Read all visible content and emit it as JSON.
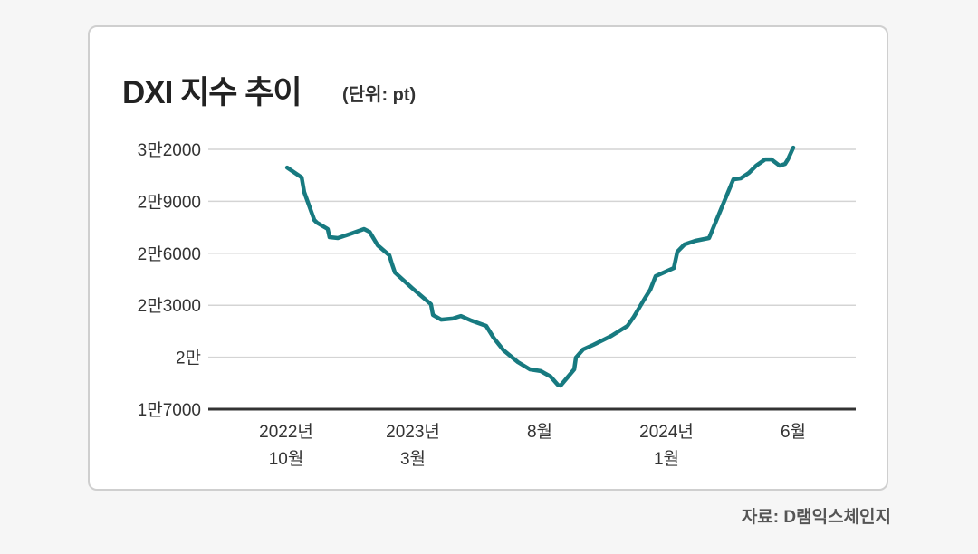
{
  "chart_data": {
    "type": "line",
    "title": "DXI 지수 추이",
    "unit": "(단위: pt)",
    "source": "자료: D램익스체인지",
    "xlabel": "",
    "ylabel": "",
    "x_unit": "months since 2022-10",
    "xlim": [
      0,
      20
    ],
    "ylim": [
      17000,
      32000
    ],
    "y_ticks": [
      17000,
      20000,
      23000,
      26000,
      29000,
      32000
    ],
    "y_tick_labels": [
      "1만7000",
      "2만",
      "2만3000",
      "2만6000",
      "2만9000",
      "3만2000"
    ],
    "x_ticks": [
      0,
      5,
      10,
      15,
      20
    ],
    "x_tick_labels": [
      [
        "2022년",
        "10월"
      ],
      [
        "2023년",
        "3월"
      ],
      [
        "8월"
      ],
      [
        "2024년",
        "1월"
      ],
      [
        "6월"
      ]
    ],
    "grid": true,
    "line_color": "#177a80",
    "series": [
      {
        "name": "DXI",
        "x": [
          0.04,
          0.61,
          0.71,
          1.11,
          1.21,
          1.64,
          1.71,
          2.04,
          2.57,
          3.07,
          3.29,
          3.61,
          4.07,
          4.18,
          4.29,
          4.96,
          5.71,
          5.79,
          6.11,
          6.57,
          6.89,
          7.29,
          7.89,
          8.18,
          8.57,
          9.14,
          9.61,
          10.04,
          10.43,
          10.71,
          10.82,
          11.36,
          11.43,
          11.71,
          12.11,
          12.82,
          13.46,
          13.71,
          14.14,
          14.36,
          14.57,
          15.29,
          15.43,
          15.71,
          16.14,
          16.68,
          17.18,
          17.64,
          17.93,
          18.25,
          18.54,
          18.89,
          19.14,
          19.46,
          19.68,
          19.79,
          20.0
        ],
        "y": [
          30950,
          30380,
          29540,
          27920,
          27770,
          27400,
          26930,
          26880,
          27140,
          27400,
          27240,
          26460,
          25880,
          25360,
          24890,
          24000,
          23060,
          22440,
          22170,
          22230,
          22380,
          22120,
          21810,
          21130,
          20400,
          19720,
          19300,
          19200,
          18880,
          18410,
          18360,
          19300,
          19980,
          20450,
          20710,
          21230,
          21810,
          22330,
          23380,
          23900,
          24680,
          25150,
          26090,
          26510,
          26720,
          26880,
          28650,
          30270,
          30330,
          30640,
          31060,
          31420,
          31420,
          31060,
          31160,
          31420,
          32100
        ]
      }
    ]
  }
}
